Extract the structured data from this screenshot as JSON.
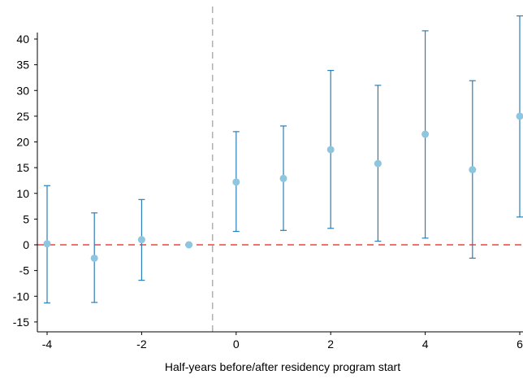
{
  "chart_data": {
    "type": "scatter",
    "subtype": "event-study coefficient plot with confidence intervals",
    "title": "",
    "xlabel": "Half-years before/after residency program start",
    "ylabel": "",
    "xlim": [
      -4,
      6
    ],
    "ylim": [
      -15,
      45
    ],
    "xticks": [
      -4,
      -2,
      0,
      2,
      4,
      6
    ],
    "yticks": [
      -15,
      -10,
      -5,
      0,
      5,
      10,
      15,
      20,
      25,
      30,
      35,
      40
    ],
    "x_tick_labels": [
      "-4",
      "-2",
      "0",
      "2",
      "4",
      "6"
    ],
    "y_tick_labels": [
      "-15",
      "-10",
      "-5",
      "0",
      "5",
      "10",
      "15",
      "20",
      "25",
      "30",
      "35",
      "40"
    ],
    "reference_lines": [
      {
        "orientation": "horizontal",
        "value": 0,
        "style": "dashed",
        "color": "#e8453c"
      },
      {
        "orientation": "vertical",
        "value": -0.5,
        "style": "dashed",
        "color": "#b0b0b0"
      }
    ],
    "grid": false,
    "legend": "none",
    "colors": {
      "point": "#8ec6e0",
      "ci": "#2a7fb8"
    },
    "points": [
      {
        "x": -4,
        "y": 0.2,
        "ci_low": -11.3,
        "ci_high": 11.5
      },
      {
        "x": -3,
        "y": -2.6,
        "ci_low": -11.2,
        "ci_high": 6.2
      },
      {
        "x": -2,
        "y": 1.0,
        "ci_low": -6.9,
        "ci_high": 8.8
      },
      {
        "x": -1,
        "y": 0.0
      },
      {
        "x": 0,
        "y": 12.2,
        "ci_low": 2.6,
        "ci_high": 22.0
      },
      {
        "x": 1,
        "y": 12.9,
        "ci_low": 2.8,
        "ci_high": 23.1
      },
      {
        "x": 2,
        "y": 18.5,
        "ci_low": 3.2,
        "ci_high": 33.9
      },
      {
        "x": 3,
        "y": 15.8,
        "ci_low": 0.7,
        "ci_high": 31.0
      },
      {
        "x": 4,
        "y": 21.5,
        "ci_low": 1.3,
        "ci_high": 41.6
      },
      {
        "x": 5,
        "y": 14.6,
        "ci_low": -2.6,
        "ci_high": 31.9
      },
      {
        "x": 6,
        "y": 25.0,
        "ci_low": 5.4,
        "ci_high": 44.5
      }
    ]
  }
}
